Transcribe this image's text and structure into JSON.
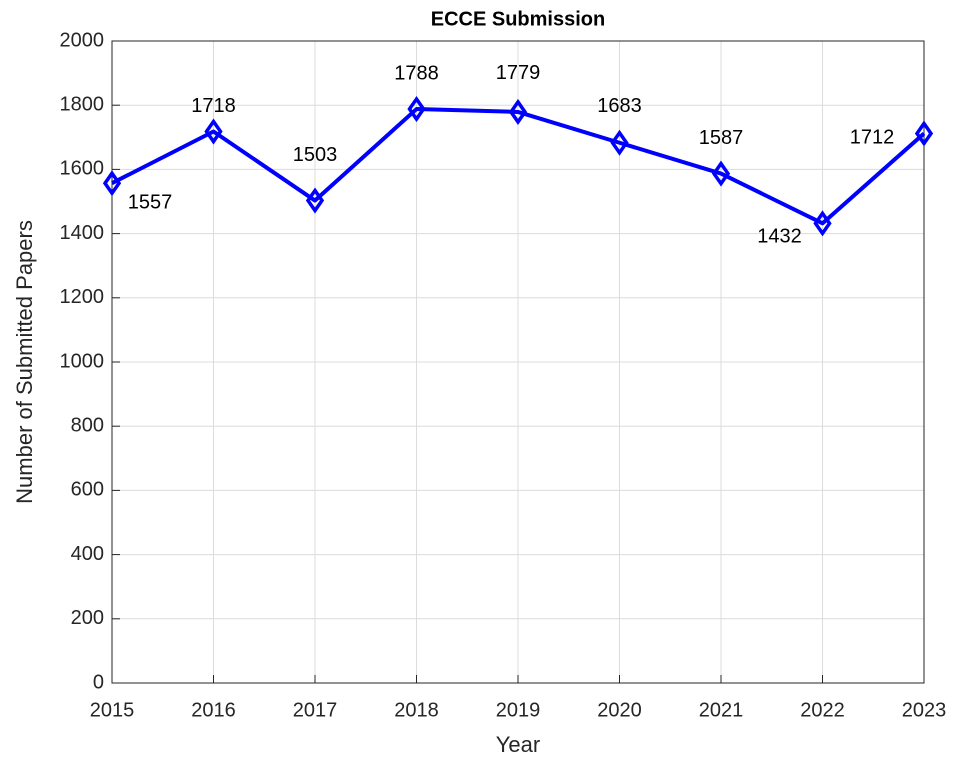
{
  "chart_data": {
    "type": "line",
    "title": "ECCE Submission",
    "xlabel": "Year",
    "ylabel": "Number of Submitted Papers",
    "x": [
      2015,
      2016,
      2017,
      2018,
      2019,
      2020,
      2021,
      2022,
      2023
    ],
    "values": [
      1557,
      1718,
      1503,
      1788,
      1779,
      1683,
      1587,
      1432,
      1712
    ],
    "color": "#0000ff",
    "xlim": [
      2015,
      2023
    ],
    "xticks": [
      2015,
      2016,
      2017,
      2018,
      2019,
      2020,
      2021,
      2022,
      2023
    ],
    "ylim": [
      0,
      2000
    ],
    "yticks": [
      0,
      200,
      400,
      600,
      800,
      1000,
      1200,
      1400,
      1600,
      1800,
      2000
    ],
    "grid": true
  }
}
